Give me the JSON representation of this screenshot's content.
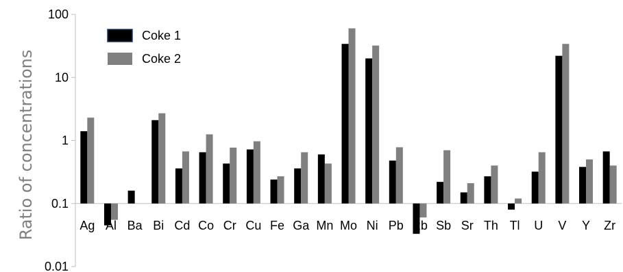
{
  "chart_data": {
    "type": "bar",
    "scale": "log",
    "ylabel": "Ratio of concentrations",
    "ylim": [
      0.01,
      100
    ],
    "yticks": [
      "0.01",
      "0.1",
      "1",
      "10",
      "100"
    ],
    "baseline": 0.1,
    "grid": false,
    "legend_position": "top-left",
    "categories": [
      "Ag",
      "Al",
      "Ba",
      "Bi",
      "Cd",
      "Co",
      "Cr",
      "Cu",
      "Fe",
      "Ga",
      "Mn",
      "Mo",
      "Ni",
      "Pb",
      "Rb",
      "Sb",
      "Sr",
      "Th",
      "Tl",
      "U",
      "V",
      "Y",
      "Zr"
    ],
    "category_labels": [
      "Ag",
      "Al",
      "Ba",
      "Bi",
      "Cd",
      "Co",
      "Cr",
      "Cu",
      "Fe",
      "Ga",
      "Mn",
      "Mo",
      "Ni",
      "Pb",
      "Rb",
      "Sb",
      "Sr",
      "Th",
      "Tl",
      "U",
      "V",
      "Y",
      "Zr"
    ],
    "series": [
      {
        "name": "Coke 1",
        "color": "#000000",
        "values": [
          1.4,
          0.045,
          0.16,
          2.1,
          0.36,
          0.65,
          0.43,
          0.72,
          0.24,
          0.36,
          0.6,
          34,
          20,
          0.48,
          0.033,
          0.22,
          0.15,
          0.27,
          0.08,
          0.32,
          22,
          0.38,
          0.67
        ]
      },
      {
        "name": "Coke 2",
        "color": "#808080",
        "values": [
          2.3,
          0.055,
          null,
          2.7,
          0.67,
          1.25,
          0.77,
          0.97,
          0.27,
          0.65,
          0.43,
          60,
          32,
          0.78,
          0.06,
          0.7,
          0.21,
          0.4,
          0.12,
          0.65,
          34,
          0.5,
          0.4
        ]
      }
    ]
  }
}
